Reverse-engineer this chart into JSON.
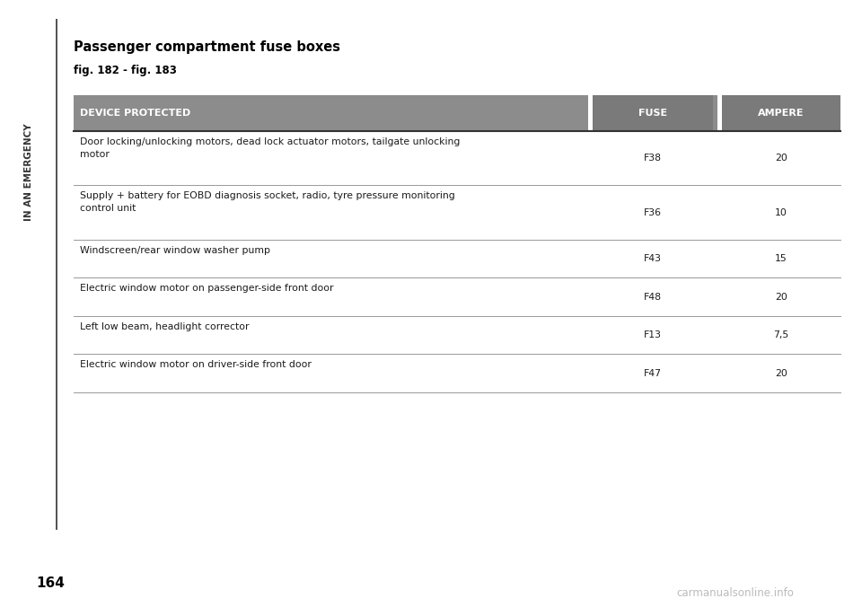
{
  "title": "Passenger compartment fuse boxes",
  "subtitle": "fig. 182 - fig. 183",
  "sidebar_text": "IN AN EMERGENCY",
  "page_number": "164",
  "watermark": "carmanualsonline.info",
  "header_bg_color": "#8c8c8c",
  "header_text_color": "#ffffff",
  "header_col1": "DEVICE PROTECTED",
  "header_col2": "FUSE",
  "header_col3": "AMPERE",
  "rows": [
    {
      "device": "Door locking/unlocking motors, dead lock actuator motors, tailgate unlocking\nmotor",
      "fuse": "F38",
      "ampere": "20"
    },
    {
      "device": "Supply + battery for EOBD diagnosis socket, radio, tyre pressure monitoring\ncontrol unit",
      "fuse": "F36",
      "ampere": "10"
    },
    {
      "device": "Windscreen/rear window washer pump",
      "fuse": "F43",
      "ampere": "15"
    },
    {
      "device": "Electric window motor on passenger-side front door",
      "fuse": "F48",
      "ampere": "20"
    },
    {
      "device": "Left low beam, headlight corrector",
      "fuse": "F13",
      "ampere": "7,5"
    },
    {
      "device": "Electric window motor on driver-side front door",
      "fuse": "F47",
      "ampere": "20"
    }
  ],
  "bg_color": "#ffffff",
  "row_line_color": "#999999",
  "sidebar_line_color": "#333333"
}
